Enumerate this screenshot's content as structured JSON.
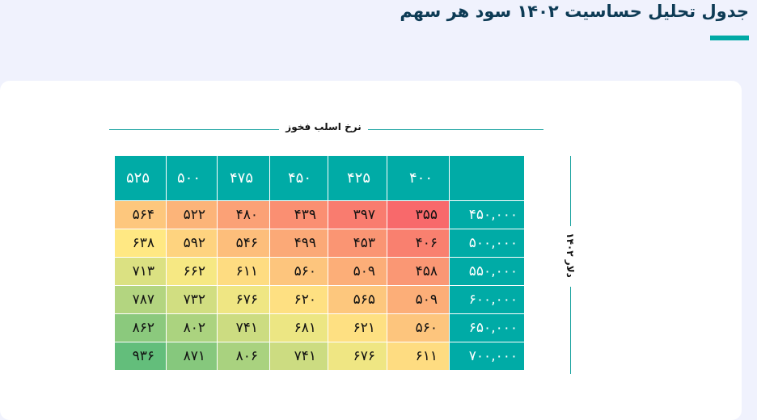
{
  "title": "جدول تحلیل حساسیت ۱۴۰۲ سود هر سهم",
  "colors": {
    "accent": "#00a9a5",
    "header": "#00aba6",
    "title": "#0d3b55",
    "scale_low": "#f8696b",
    "scale_mid": "#ffeb84",
    "scale_high": "#63be7b"
  },
  "table": {
    "column_axis_label": "نرخ اسلب فخوز",
    "row_axis_label": "دلار ۱۴۰۲",
    "columns": [
      "۴۰۰",
      "۴۲۵",
      "۴۵۰",
      "۴۷۵",
      "۵۰۰",
      "۵۲۵"
    ],
    "rows": [
      {
        "label": "۴۵۰,۰۰۰",
        "cells": [
          "۳۵۵",
          "۳۹۷",
          "۴۳۹",
          "۴۸۰",
          "۵۲۲",
          "۵۶۴"
        ],
        "values": [
          355,
          397,
          439,
          480,
          522,
          564
        ]
      },
      {
        "label": "۵۰۰,۰۰۰",
        "cells": [
          "۴۰۶",
          "۴۵۳",
          "۴۹۹",
          "۵۴۶",
          "۵۹۲",
          "۶۳۸"
        ],
        "values": [
          406,
          453,
          499,
          546,
          592,
          638
        ]
      },
      {
        "label": "۵۵۰,۰۰۰",
        "cells": [
          "۴۵۸",
          "۵۰۹",
          "۵۶۰",
          "۶۱۱",
          "۶۶۲",
          "۷۱۳"
        ],
        "values": [
          458,
          509,
          560,
          611,
          662,
          713
        ]
      },
      {
        "label": "۶۰۰,۰۰۰",
        "cells": [
          "۵۰۹",
          "۵۶۵",
          "۶۲۰",
          "۶۷۶",
          "۷۳۲",
          "۷۸۷"
        ],
        "values": [
          509,
          565,
          620,
          676,
          732,
          787
        ]
      },
      {
        "label": "۶۵۰,۰۰۰",
        "cells": [
          "۵۶۰",
          "۶۲۱",
          "۶۸۱",
          "۷۴۱",
          "۸۰۲",
          "۸۶۲"
        ],
        "values": [
          560,
          621,
          681,
          741,
          802,
          862
        ]
      },
      {
        "label": "۷۰۰,۰۰۰",
        "cells": [
          "۶۱۱",
          "۶۷۶",
          "۷۴۱",
          "۸۰۶",
          "۸۷۱",
          "۹۳۶"
        ],
        "values": [
          611,
          676,
          741,
          806,
          871,
          936
        ]
      }
    ]
  }
}
